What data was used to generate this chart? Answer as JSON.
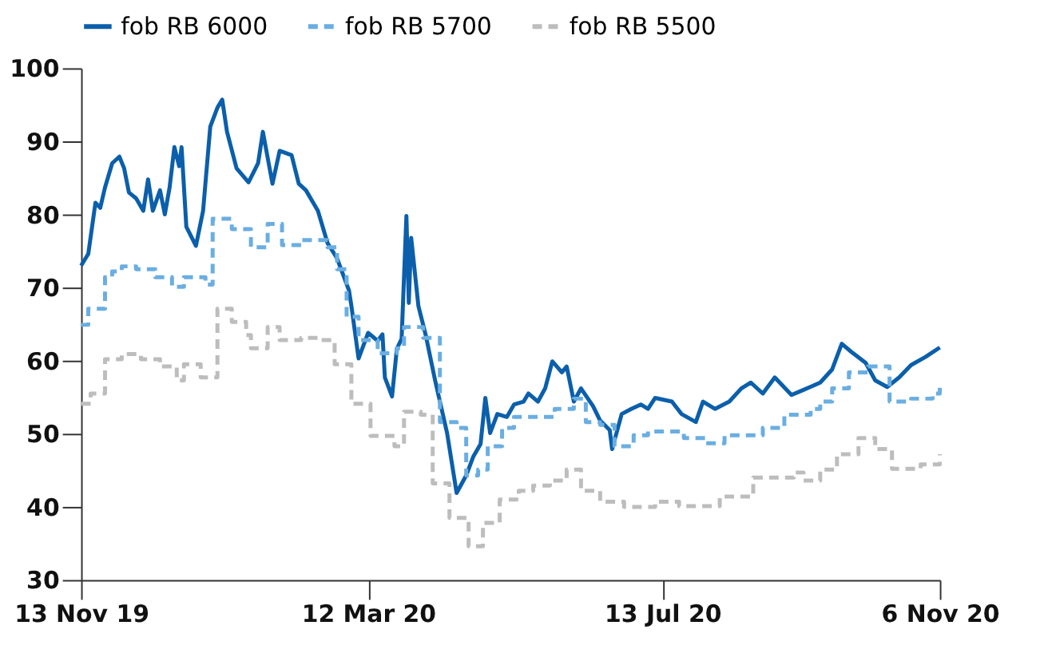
{
  "chart_data": {
    "type": "line",
    "xlim": [
      "2019-11-13",
      "2020-11-06"
    ],
    "xticks": [
      {
        "value": "2019-11-13",
        "label": "13 Nov 19"
      },
      {
        "value": "2020-03-12",
        "label": "12 Mar 20"
      },
      {
        "value": "2020-07-13",
        "label": "13 Jul 20"
      },
      {
        "value": "2020-11-06",
        "label": "6 Nov 20"
      }
    ],
    "ylim": [
      30,
      100
    ],
    "yticks": [
      30,
      40,
      50,
      60,
      70,
      80,
      90,
      100
    ],
    "grid": false,
    "legend": "top left",
    "series": [
      {
        "name": "fob RB 6000",
        "color": "#0b5fab",
        "line_style": "solid",
        "x": [
          "2019-11-13",
          "2019-11-16",
          "2019-11-19",
          "2019-11-21",
          "2019-11-23",
          "2019-11-26",
          "2019-11-29",
          "2019-12-01",
          "2019-12-03",
          "2019-12-06",
          "2019-12-09",
          "2019-12-11",
          "2019-12-13",
          "2019-12-16",
          "2019-12-18",
          "2019-12-20",
          "2019-12-22",
          "2019-12-24",
          "2019-12-25",
          "2019-12-27",
          "2019-12-31",
          "2020-01-03",
          "2020-01-06",
          "2020-01-09",
          "2020-01-11",
          "2020-01-13",
          "2020-01-17",
          "2020-01-22",
          "2020-01-26",
          "2020-01-28",
          "2020-02-01",
          "2020-02-04",
          "2020-02-09",
          "2020-02-12",
          "2020-02-15",
          "2020-02-20",
          "2020-02-24",
          "2020-02-28",
          "2020-03-04",
          "2020-03-05",
          "2020-03-08",
          "2020-03-12",
          "2020-03-16",
          "2020-03-18",
          "2020-03-19",
          "2020-03-22",
          "2020-03-24",
          "2020-03-26",
          "2020-03-28",
          "2020-03-29",
          "2020-03-30",
          "2020-04-02",
          "2020-04-05",
          "2020-04-09",
          "2020-04-14",
          "2020-04-18",
          "2020-04-22",
          "2020-04-25",
          "2020-04-28",
          "2020-04-30",
          "2020-05-02",
          "2020-05-05",
          "2020-05-09",
          "2020-05-12",
          "2020-05-16",
          "2020-05-18",
          "2020-05-22",
          "2020-05-25",
          "2020-05-28",
          "2020-06-01",
          "2020-06-03",
          "2020-06-06",
          "2020-06-09",
          "2020-06-14",
          "2020-06-17",
          "2020-06-21",
          "2020-06-22",
          "2020-06-26",
          "2020-06-30",
          "2020-07-04",
          "2020-07-07",
          "2020-07-10",
          "2020-07-17",
          "2020-07-21",
          "2020-07-27",
          "2020-07-30",
          "2020-08-04",
          "2020-08-10",
          "2020-08-15",
          "2020-08-19",
          "2020-08-24",
          "2020-08-29",
          "2020-09-05",
          "2020-09-10",
          "2020-09-17",
          "2020-09-22",
          "2020-09-26",
          "2020-09-30",
          "2020-10-06",
          "2020-10-10",
          "2020-10-15",
          "2020-10-20",
          "2020-10-25",
          "2020-10-31",
          "2020-11-06"
        ],
        "values": [
          73,
          74.6,
          81.6,
          80.9,
          83.7,
          87,
          87.9,
          86.3,
          83,
          82.2,
          80.5,
          84.8,
          80.5,
          83.3,
          80,
          83.7,
          89.2,
          86.6,
          89.2,
          78.3,
          75.7,
          80.5,
          92,
          94.6,
          95.7,
          91.3,
          86.3,
          84.4,
          87,
          91.3,
          84.2,
          88.7,
          88.1,
          84.2,
          83.3,
          80.5,
          76.1,
          74,
          69.6,
          67.5,
          60.3,
          63.8,
          62.7,
          63.6,
          57.7,
          55.1,
          61.6,
          63,
          79.8,
          67.9,
          76.8,
          67.5,
          63.6,
          57.3,
          50.1,
          41.9,
          44.3,
          46.9,
          48.6,
          54.9,
          50.1,
          52.7,
          52.3,
          54,
          54.4,
          55.5,
          54.4,
          56.2,
          59.9,
          58.4,
          59.2,
          54.4,
          56.2,
          53.8,
          51.8,
          50.5,
          47.9,
          52.7,
          53.4,
          54,
          53.4,
          54.9,
          54.4,
          52.7,
          51.6,
          54.4,
          53.4,
          54.4,
          56.2,
          57,
          55.5,
          57.7,
          55.3,
          56,
          57,
          58.8,
          62.3,
          61.2,
          59.7,
          57.3,
          56.4,
          57.7,
          59.4,
          60.5,
          61.8
        ]
      },
      {
        "name": "fob RB 5700",
        "color": "#6aaee2",
        "type": "step",
        "line_style": "dashed",
        "x": [
          "2019-11-13",
          "2019-11-16",
          "2019-11-23",
          "2019-11-26",
          "2019-11-30",
          "2019-12-06",
          "2019-12-14",
          "2019-12-21",
          "2019-12-26",
          "2020-01-04",
          "2020-01-07",
          "2020-01-15",
          "2020-01-23",
          "2020-01-30",
          "2020-02-05",
          "2020-02-13",
          "2020-02-24",
          "2020-02-28",
          "2020-03-03",
          "2020-03-08",
          "2020-03-16",
          "2020-03-24",
          "2020-03-27",
          "2020-04-04",
          "2020-04-11",
          "2020-04-18",
          "2020-04-22",
          "2020-04-27",
          "2020-05-01",
          "2020-05-07",
          "2020-05-12",
          "2020-05-29",
          "2020-06-06",
          "2020-06-11",
          "2020-06-17",
          "2020-06-23",
          "2020-07-01",
          "2020-07-07",
          "2020-07-22",
          "2020-07-31",
          "2020-08-08",
          "2020-08-24",
          "2020-09-02",
          "2020-09-13",
          "2020-09-17",
          "2020-09-22",
          "2020-09-29",
          "2020-10-07",
          "2020-10-16",
          "2020-10-25",
          "2020-11-03",
          "2020-11-06"
        ],
        "values": [
          64.9,
          67.1,
          71.4,
          72.2,
          72.9,
          72.5,
          71.4,
          70.1,
          71.4,
          70.4,
          79.4,
          78,
          75.5,
          78.7,
          75.8,
          76.5,
          75.5,
          72.5,
          66,
          62.8,
          61,
          61.7,
          64.6,
          63.1,
          51.6,
          50.8,
          44.3,
          45.1,
          48.3,
          50.8,
          52.3,
          53.4,
          54.8,
          51.6,
          51.2,
          48.3,
          49.8,
          50.3,
          49.4,
          48.7,
          49.8,
          50.8,
          52.6,
          53.4,
          54.4,
          56.2,
          58.4,
          59.2,
          54.4,
          54.8,
          55.5,
          56.5
        ]
      },
      {
        "name": "fob RB 5500",
        "color": "#bdbdbd",
        "type": "step",
        "line_style": "dashed",
        "x": [
          "2019-11-13",
          "2019-11-17",
          "2019-11-23",
          "2019-11-30",
          "2019-12-08",
          "2019-12-16",
          "2019-12-23",
          "2019-12-26",
          "2020-01-02",
          "2020-01-09",
          "2020-01-15",
          "2020-01-21",
          "2020-01-23",
          "2020-01-30",
          "2020-02-04",
          "2020-02-13",
          "2020-02-20",
          "2020-02-27",
          "2020-03-05",
          "2020-03-13",
          "2020-03-23",
          "2020-03-27",
          "2020-04-03",
          "2020-04-08",
          "2020-04-15",
          "2020-04-23",
          "2020-04-29",
          "2020-05-06",
          "2020-05-14",
          "2020-05-20",
          "2020-05-27",
          "2020-06-03",
          "2020-06-09",
          "2020-06-17",
          "2020-06-27",
          "2020-07-10",
          "2020-07-20",
          "2020-08-06",
          "2020-08-20",
          "2020-09-06",
          "2020-09-10",
          "2020-09-17",
          "2020-09-24",
          "2020-10-03",
          "2020-10-10",
          "2020-10-17",
          "2020-10-29",
          "2020-11-06"
        ],
        "values": [
          54.1,
          55.5,
          60.2,
          60.9,
          60.2,
          59.2,
          57.3,
          59.5,
          57.7,
          67.1,
          65.3,
          63.5,
          61.7,
          64.6,
          62.8,
          63.1,
          62.8,
          59.5,
          54.1,
          49.7,
          48.3,
          53,
          52.6,
          43.2,
          38.5,
          34.6,
          37.8,
          41,
          42.2,
          42.9,
          43.6,
          45.1,
          42.2,
          40.7,
          40,
          40.7,
          40.1,
          41.4,
          44,
          44.7,
          43.6,
          45.1,
          47.2,
          49.4,
          47.9,
          45.2,
          45.8,
          47.2
        ]
      }
    ]
  }
}
